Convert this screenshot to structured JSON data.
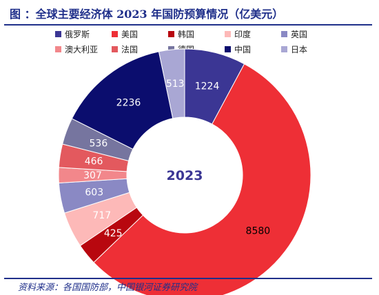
{
  "header": {
    "title": "图   ：全球主要经济体 2023 年国防预算情况（亿美元）"
  },
  "source": "资料来源：各国国防部，中国银河证券研究院",
  "chart_data": {
    "type": "pie",
    "donut": true,
    "center_label": "2023",
    "legend_position": "top",
    "categories": [
      "俄罗斯",
      "美国",
      "韩国",
      "印度",
      "英国",
      "澳大利亚",
      "法国",
      "德国",
      "中国",
      "日本"
    ],
    "values": [
      1224,
      8580,
      425,
      717,
      603,
      307,
      466,
      536,
      2236,
      513
    ],
    "colors": [
      "#3b3694",
      "#ee2f36",
      "#b8070f",
      "#fdb9b8",
      "#8a89c4",
      "#f2878b",
      "#e3595e",
      "#76759f",
      "#0b0d6e",
      "#a9a7d4"
    ],
    "label_colors": [
      "#ffffff",
      "#000000",
      "#ffffff",
      "#ffffff",
      "#ffffff",
      "#ffffff",
      "#ffffff",
      "#ffffff",
      "#ffffff",
      "#ffffff"
    ]
  }
}
